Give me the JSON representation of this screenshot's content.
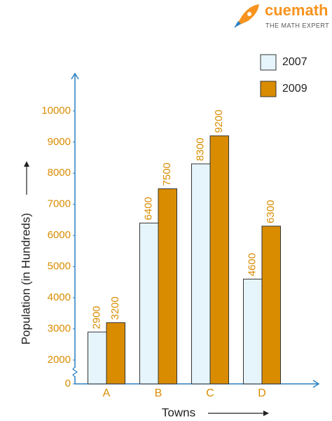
{
  "brand": {
    "name": "cuemath",
    "tagline": "THE MATH EXPERT"
  },
  "chart_data": {
    "type": "bar",
    "x_label": "Towns",
    "y_label": "Population (in Hundreds)",
    "categories": [
      "A",
      "B",
      "C",
      "D"
    ],
    "series": [
      {
        "name": "2007",
        "color": "#e6f5fb",
        "values": [
          2900,
          6400,
          8300,
          4600
        ]
      },
      {
        "name": "2009",
        "color": "#d98c00",
        "values": [
          3200,
          7500,
          9200,
          6300
        ]
      }
    ],
    "ylim": [
      0,
      11200
    ],
    "yticks": [
      0,
      2000,
      3000,
      4000,
      5000,
      6000,
      7000,
      8000,
      9000,
      10000
    ],
    "y_axis_break": true,
    "axis_color": "#2a7fc1",
    "label_color": "#d98c00",
    "grid": false,
    "legend": "top-right"
  }
}
